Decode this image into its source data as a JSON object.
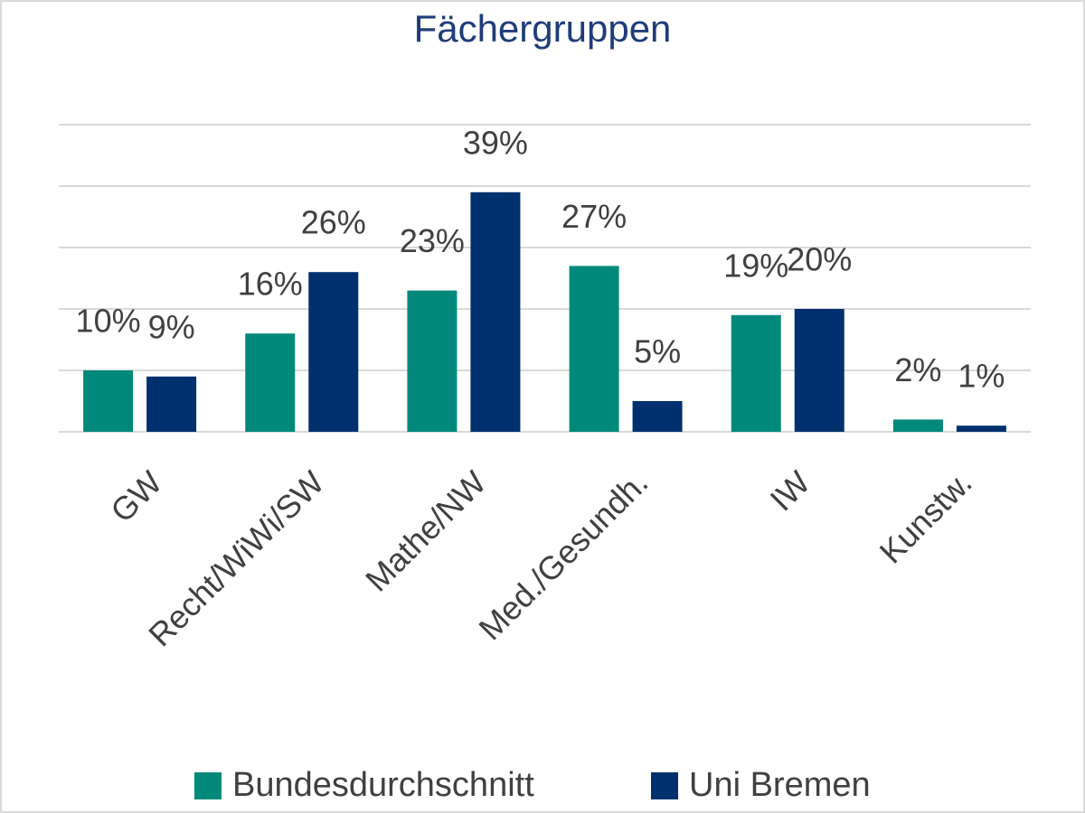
{
  "chart_data": {
    "type": "bar",
    "title": "Fächergruppen",
    "categories": [
      "GW",
      "Recht/WiWi/SW",
      "Mathe/NW",
      "Med./Gesundh.",
      "IW",
      "Kunstw."
    ],
    "series": [
      {
        "name": "Bundesdurchschnitt",
        "color": "#00897b",
        "values": [
          10,
          16,
          23,
          27,
          19,
          2
        ],
        "value_labels": [
          "10%",
          "16%",
          "23%",
          "27%",
          "19%",
          "2%"
        ]
      },
      {
        "name": "Uni Bremen",
        "color": "#00306e",
        "values": [
          9,
          26,
          39,
          5,
          20,
          1
        ],
        "value_labels": [
          "9%",
          "26%",
          "39%",
          "5%",
          "20%",
          "1%"
        ]
      }
    ],
    "ylim": [
      0,
      50
    ],
    "yticks": [
      0,
      10,
      20,
      30,
      40,
      50
    ],
    "grid": true,
    "legend": "bottom"
  }
}
